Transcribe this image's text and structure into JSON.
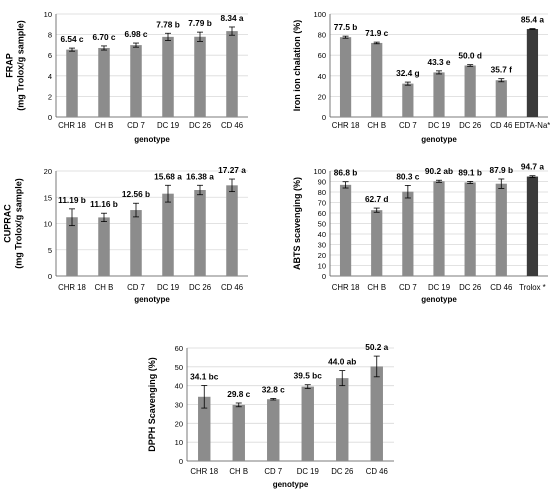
{
  "colors": {
    "bar": "#8c8c8c",
    "highlight_bar": "#3a3a3a",
    "grid": "#d9d9d9",
    "axis": "#595959",
    "text": "#000000"
  },
  "chart_data": [
    {
      "type": "bar",
      "ylabel": [
        "FRAP",
        "(mg Trolox/g sample)"
      ],
      "xlabel": "genotype",
      "ylim": [
        0,
        10
      ],
      "ytick_step": 2,
      "ytick_labels": [
        "0",
        "2",
        "4",
        "6",
        "8",
        "10"
      ],
      "grid": true,
      "categories": [
        "CHR 18",
        "CH B",
        "CD 7",
        "DC 19",
        "DC 26",
        "CD 46"
      ],
      "values": [
        6.54,
        6.7,
        6.98,
        7.78,
        7.79,
        8.34
      ],
      "errors": [
        0.15,
        0.2,
        0.2,
        0.35,
        0.45,
        0.4
      ],
      "data_labels": [
        "6.54 c",
        "6.70 c",
        "6.98 c",
        "7.78 b",
        "7.79 b",
        "8.34 a"
      ],
      "highlight": []
    },
    {
      "type": "bar",
      "ylabel": [
        "Iron ion chalation (%)"
      ],
      "xlabel": "genotype",
      "ylim": [
        0,
        100
      ],
      "ytick_step": 20,
      "ytick_labels": [
        "0",
        "20",
        "40",
        "60",
        "80",
        "100"
      ],
      "grid": true,
      "categories": [
        "CHR 18",
        "CH B",
        "CD 7",
        "DC 19",
        "DC 26",
        "CD 46",
        "EDTA-Na*"
      ],
      "values": [
        77.5,
        71.9,
        32.4,
        43.3,
        50.0,
        35.7,
        85.4
      ],
      "errors": [
        1.0,
        0.8,
        1.5,
        1.5,
        0.8,
        1.5,
        0.4
      ],
      "data_labels": [
        "77.5 b",
        "71.9 c",
        "32.4 g",
        "43.3 e",
        "50.0 d",
        "35.7 f",
        "85.4 a"
      ],
      "highlight": [
        6
      ]
    },
    {
      "type": "bar",
      "ylabel": [
        "CUPRAC",
        "(mg Trolox/g sample)"
      ],
      "xlabel": "genotype",
      "ylim": [
        0,
        20
      ],
      "ytick_step": 5,
      "ytick_labels": [
        "0",
        "5",
        "10",
        "15",
        "20"
      ],
      "grid": true,
      "categories": [
        "CHR 18",
        "CH B",
        "CD 7",
        "DC 19",
        "DC 26",
        "CD 46"
      ],
      "values": [
        11.19,
        11.16,
        12.56,
        15.68,
        16.38,
        17.27
      ],
      "errors": [
        1.6,
        0.8,
        1.3,
        1.6,
        0.9,
        1.2
      ],
      "data_labels": [
        "11.19 b",
        "11.16 b",
        "12.56 b",
        "15.68 a",
        "16.38 a",
        "17.27 a"
      ],
      "highlight": []
    },
    {
      "type": "bar",
      "ylabel": [
        "ABTS scavenging (%)"
      ],
      "xlabel": "genotype",
      "ylim": [
        0,
        100
      ],
      "ytick_step": 10,
      "ytick_labels": [
        "0",
        "10",
        "20",
        "30",
        "40",
        "50",
        "60",
        "70",
        "80",
        "90",
        "100"
      ],
      "grid": true,
      "categories": [
        "CHR 18",
        "CH B",
        "CD 7",
        "DC 19",
        "DC 26",
        "CD 46",
        "Trolox *"
      ],
      "values": [
        86.8,
        62.7,
        80.3,
        90.2,
        89.1,
        87.9,
        94.7
      ],
      "errors": [
        3.0,
        2.0,
        6.0,
        1.0,
        1.0,
        4.5,
        0.8
      ],
      "data_labels": [
        "86.8 b",
        "62.7 d",
        "80.3 c",
        "90.2 ab",
        "89.1 b",
        "87.9 b",
        "94.7 a"
      ],
      "highlight": [
        6
      ]
    },
    {
      "type": "bar",
      "ylabel": [
        "DPPH Scavenging (%)"
      ],
      "xlabel": "genotype",
      "ylim": [
        0,
        60
      ],
      "ytick_step": 10,
      "ytick_labels": [
        "0",
        "10",
        "20",
        "30",
        "40",
        "50",
        "60"
      ],
      "grid": true,
      "categories": [
        "CHR 18",
        "CH B",
        "CD 7",
        "DC 19",
        "DC 26",
        "CD 46"
      ],
      "values": [
        34.1,
        29.8,
        32.8,
        39.5,
        44.0,
        50.2
      ],
      "errors": [
        6.0,
        1.0,
        0.4,
        1.0,
        4.0,
        5.5
      ],
      "data_labels": [
        "34.1 bc",
        "29.8 c",
        "32.8 c",
        "39.5 bc",
        "44.0 ab",
        "50.2 a"
      ],
      "highlight": []
    }
  ]
}
